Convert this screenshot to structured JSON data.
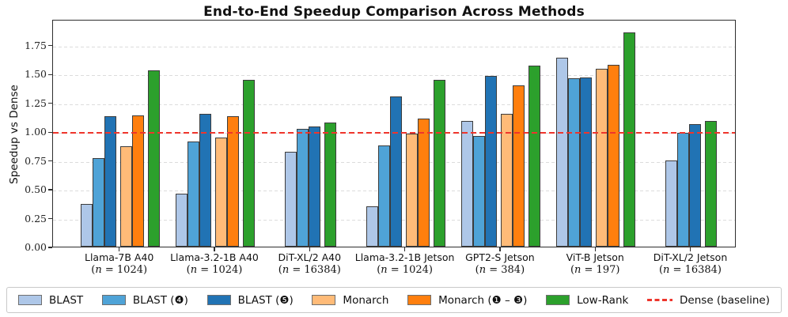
{
  "title": "End-to-End Speedup Comparison Across Methods",
  "ylabel": "Speedup vs Dense",
  "chart_data": {
    "type": "bar",
    "title": "End-to-End Speedup Comparison Across Methods",
    "xlabel": "",
    "ylabel": "Speedup vs Dense",
    "ylim": [
      0,
      1.975
    ],
    "yticks": [
      "0.00",
      "0.25",
      "0.50",
      "0.75",
      "1.00",
      "1.25",
      "1.50",
      "1.75"
    ],
    "grid": true,
    "legend_position": "bottom",
    "categories": [
      {
        "name": "Llama-7B A40",
        "n": "1024"
      },
      {
        "name": "Llama-3.2-1B A40",
        "n": "1024"
      },
      {
        "name": "DiT-XL/2 A40",
        "n": "16384"
      },
      {
        "name": "Llama-3.2-1B Jetson",
        "n": "1024"
      },
      {
        "name": "GPT2-S Jetson",
        "n": "384"
      },
      {
        "name": "ViT-B Jetson",
        "n": "197"
      },
      {
        "name": "DiT-XL/2 Jetson",
        "n": "16384"
      }
    ],
    "series": [
      {
        "name": "BLAST",
        "color": "#aec7e8",
        "family": 0,
        "values": [
          0.37,
          0.46,
          0.82,
          0.35,
          1.09,
          1.64,
          0.75
        ]
      },
      {
        "name": "BLAST (❹)",
        "color": "#4fa3d7",
        "family": 0,
        "values": [
          0.77,
          0.91,
          1.02,
          0.88,
          0.96,
          1.46,
          0.99
        ]
      },
      {
        "name": "BLAST (❺)",
        "color": "#2173b4",
        "family": 0,
        "values": [
          1.13,
          1.15,
          1.04,
          1.3,
          1.48,
          1.47,
          1.06
        ]
      },
      {
        "name": "Monarch",
        "color": "#ffbb78",
        "family": 1,
        "values": [
          0.87,
          0.95,
          null,
          0.98,
          1.15,
          1.54,
          null
        ]
      },
      {
        "name": "Monarch (❶ – ❸)",
        "color": "#ff7f0e",
        "family": 1,
        "values": [
          1.14,
          1.13,
          null,
          1.11,
          1.4,
          1.58,
          null
        ]
      },
      {
        "name": "Low-Rank",
        "color": "#2ca02c",
        "family": 2,
        "values": [
          1.53,
          1.45,
          1.08,
          1.45,
          1.57,
          1.86,
          1.09
        ]
      }
    ],
    "baseline": {
      "label": "Dense (baseline)",
      "value": 1.0,
      "color": "#ee352c",
      "style": "dashed"
    }
  }
}
